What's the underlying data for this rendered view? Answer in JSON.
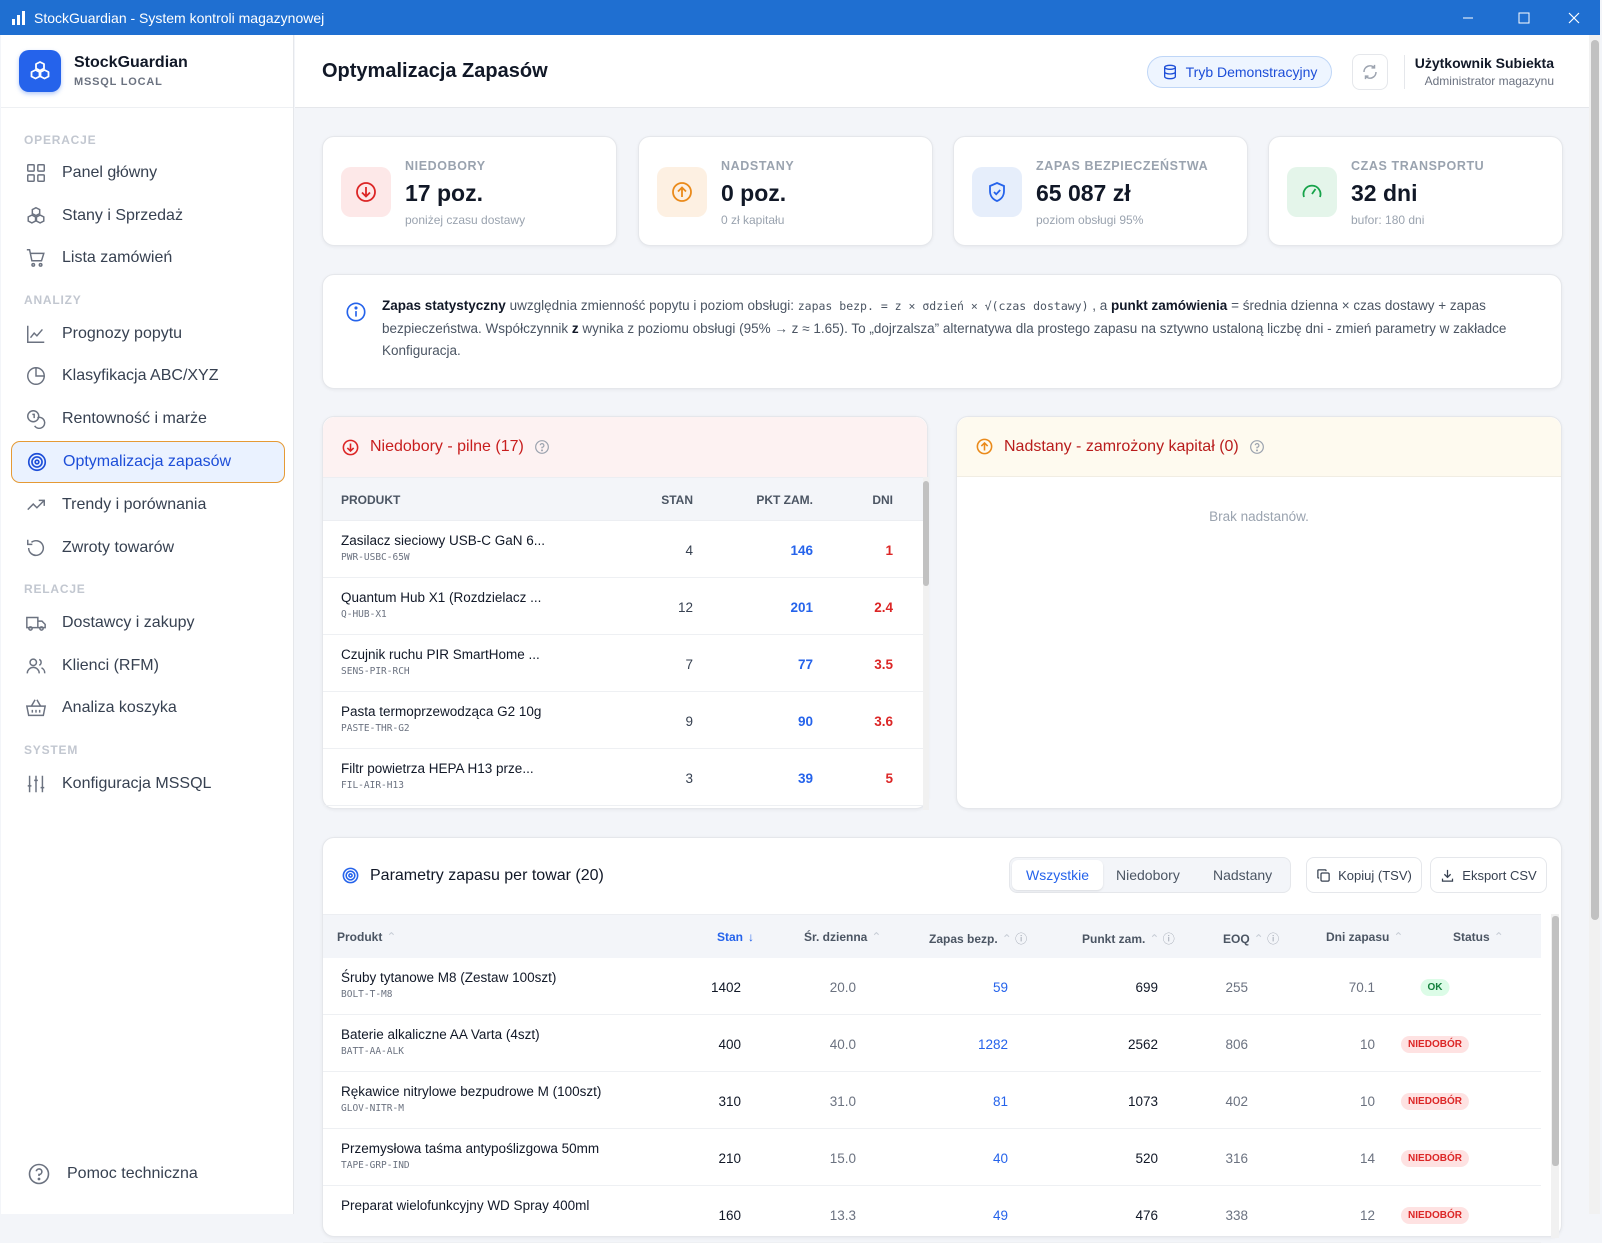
{
  "window": {
    "title": "StockGuardian - System kontroli magazynowej"
  },
  "brand": {
    "name": "StockGuardian",
    "sub": "MSSQL LOCAL"
  },
  "sidebar": {
    "sections": [
      "OPERACJE",
      "ANALIZY",
      "RELACJE",
      "SYSTEM"
    ],
    "items": [
      {
        "label": "Panel główny",
        "icon": "dashboard-icon"
      },
      {
        "label": "Stany i Sprzedaż",
        "icon": "boxes-icon"
      },
      {
        "label": "Lista zamówień",
        "icon": "cart-icon"
      },
      {
        "label": "Prognozy popytu",
        "icon": "line-chart-icon"
      },
      {
        "label": "Klasyfikacja ABC/XYZ",
        "icon": "pie-chart-icon"
      },
      {
        "label": "Rentowność i marże",
        "icon": "coins-icon"
      },
      {
        "label": "Optymalizacja zapasów",
        "icon": "target-icon",
        "active": true
      },
      {
        "label": "Trendy i porównania",
        "icon": "trending-icon"
      },
      {
        "label": "Zwroty towarów",
        "icon": "undo-icon"
      },
      {
        "label": "Dostawcy i zakupy",
        "icon": "truck-icon"
      },
      {
        "label": "Klienci (RFM)",
        "icon": "users-icon"
      },
      {
        "label": "Analiza koszyka",
        "icon": "basket-icon"
      },
      {
        "label": "Konfiguracja MSSQL",
        "icon": "sliders-icon"
      }
    ],
    "help": "Pomoc techniczna"
  },
  "header": {
    "title": "Optymalizacja Zapasów",
    "demo_label": "Tryb Demonstracyjny",
    "user_name": "Użytkownik Subiekta",
    "user_role": "Administrator magazynu"
  },
  "stats": [
    {
      "label": "NIEDOBORY",
      "value": "17 poz.",
      "sub": "poniżej czasu dostawy",
      "color": "#dc2626",
      "bg": "#fde8e8"
    },
    {
      "label": "NADSTANY",
      "value": "0 poz.",
      "sub": "0 zł kapitału",
      "color": "#ea8a1a",
      "bg": "#fdf0e2"
    },
    {
      "label": "ZAPAS BEZPIECZEŃSTWA",
      "value": "65 087 zł",
      "sub": "poziom obsługi 95%",
      "color": "#2563eb",
      "bg": "#e6eefb"
    },
    {
      "label": "CZAS TRANSPORTU",
      "value": "32 dni",
      "sub": "bufor: 180 dni",
      "color": "#16a34a",
      "bg": "#e4f5ea"
    }
  ],
  "info": {
    "b1": "Zapas statystyczny",
    "t1": " uwzględnia zmienność popytu i poziom obsługi: ",
    "code": "zapas bezp. = z × σdzień × √(czas dostawy)",
    "t2": " , a ",
    "b2": "punkt zamówienia",
    "t3": " = średnia dzienna × czas dostawy + zapas bezpieczeństwa. Współczynnik ",
    "b3": "z",
    "t4": " wynika z poziomu obsługi (95% → z ≈ 1.65). To „dojrzalsza” alternatywa dla prostego zapasu na sztywno ustaloną liczbę dni - zmień parametry w zakładce Konfiguracja."
  },
  "shortages": {
    "title": "Niedobory - pilne (17)",
    "columns": [
      "PRODUKT",
      "STAN",
      "PKT ZAM.",
      "DNI"
    ],
    "rows": [
      {
        "name": "Zasilacz sieciowy USB-C GaN 6...",
        "sku": "PWR-USBC-65W",
        "stock": "4",
        "reorder": "146",
        "days": "1"
      },
      {
        "name": "Quantum Hub X1 (Rozdzielacz ...",
        "sku": "Q-HUB-X1",
        "stock": "12",
        "reorder": "201",
        "days": "2.4"
      },
      {
        "name": "Czujnik ruchu PIR SmartHome ...",
        "sku": "SENS-PIR-RCH",
        "stock": "7",
        "reorder": "77",
        "days": "3.5"
      },
      {
        "name": "Pasta termoprzewodząca G2 10g",
        "sku": "PASTE-THR-G2",
        "stock": "9",
        "reorder": "90",
        "days": "3.6"
      },
      {
        "name": "Filtr powietrza HEPA H13 prze...",
        "sku": "FIL-AIR-H13",
        "stock": "3",
        "reorder": "39",
        "days": "5"
      }
    ]
  },
  "overstock": {
    "title": "Nadstany - zamrożony kapitał (0)",
    "empty": "Brak nadstanów."
  },
  "params": {
    "title": "Parametry zapasu per towar (20)",
    "tabs": [
      "Wszystkie",
      "Niedobory",
      "Nadstany"
    ],
    "copy_label": "Kopiuj (TSV)",
    "export_label": "Eksport CSV",
    "columns": [
      "Produkt",
      "Stan",
      "Śr. dzienna",
      "Zapas bezp.",
      "Punkt zam.",
      "EOQ",
      "Dni zapasu",
      "Status"
    ],
    "rows": [
      {
        "name": "Śruby tytanowe M8 (Zestaw 100szt)",
        "sku": "BOLT-T-M8",
        "stock": "1402",
        "avg": "20.0",
        "safety": "59",
        "reorder": "699",
        "eoq": "255",
        "days": "70.1",
        "status": "OK"
      },
      {
        "name": "Baterie alkaliczne AA Varta (4szt)",
        "sku": "BATT-AA-ALK",
        "stock": "400",
        "avg": "40.0",
        "safety": "1282",
        "reorder": "2562",
        "eoq": "806",
        "days": "10",
        "status": "NIEDOBÓR"
      },
      {
        "name": "Rękawice nitrylowe bezpudrowe M (100szt)",
        "sku": "GLOV-NITR-M",
        "stock": "310",
        "avg": "31.0",
        "safety": "81",
        "reorder": "1073",
        "eoq": "402",
        "days": "10",
        "status": "NIEDOBÓR"
      },
      {
        "name": "Przemysłowa taśma antypoślizgowa 50mm",
        "sku": "TAPE-GRP-IND",
        "stock": "210",
        "avg": "15.0",
        "safety": "40",
        "reorder": "520",
        "eoq": "316",
        "days": "14",
        "status": "NIEDOBÓR"
      },
      {
        "name": "Preparat wielofunkcyjny WD Spray 400ml",
        "sku": "",
        "stock": "160",
        "avg": "13.3",
        "safety": "49",
        "reorder": "476",
        "eoq": "338",
        "days": "12",
        "status": "NIEDOBÓR"
      }
    ]
  }
}
